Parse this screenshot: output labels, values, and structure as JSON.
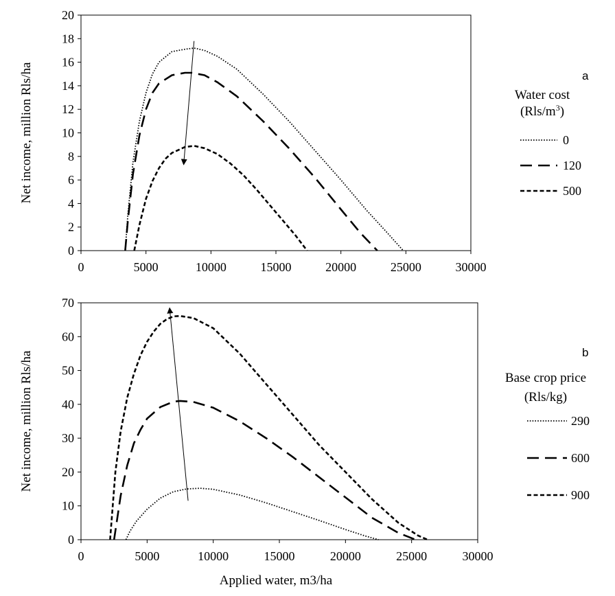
{
  "chart_data": [
    {
      "type": "line",
      "panel_label": "a",
      "title": "",
      "xlabel": "",
      "ylabel": "Net income, million Rls/ha",
      "xlim": [
        0,
        30000
      ],
      "ylim": [
        0,
        20
      ],
      "x_ticks": [
        0,
        5000,
        10000,
        15000,
        20000,
        25000,
        30000
      ],
      "y_ticks": [
        0,
        2,
        4,
        6,
        8,
        10,
        12,
        14,
        16,
        18,
        20
      ],
      "grid": false,
      "legend": {
        "title_line1": "Water cost",
        "title_line2_prefix": "(Rls/m",
        "title_line2_sup": "3",
        "title_line2_suffix": ")",
        "placement": "right"
      },
      "arrow": {
        "from": [
          8700,
          17.8
        ],
        "to": [
          7900,
          7.3
        ]
      },
      "series": [
        {
          "name": "0",
          "style": "dotted",
          "x": [
            3400,
            3600,
            4000,
            4500,
            5000,
            5500,
            6000,
            7000,
            8000,
            8700,
            9500,
            10500,
            12000,
            14000,
            16000,
            18000,
            20000,
            22000,
            23500,
            24800
          ],
          "y": [
            0,
            3.0,
            7.5,
            11.0,
            13.4,
            15.0,
            16.0,
            16.9,
            17.1,
            17.2,
            17.0,
            16.5,
            15.4,
            13.3,
            11.0,
            8.5,
            6.0,
            3.4,
            1.6,
            0
          ]
        },
        {
          "name": "120",
          "style": "long-dash",
          "x": [
            3400,
            3600,
            4000,
            4500,
            5000,
            5500,
            6000,
            7000,
            8000,
            8500,
            9500,
            10500,
            12000,
            14000,
            16000,
            18000,
            20000,
            21500,
            22800
          ],
          "y": [
            0,
            2.5,
            6.5,
            9.8,
            12.0,
            13.4,
            14.2,
            14.9,
            15.1,
            15.1,
            14.9,
            14.3,
            13.1,
            11.0,
            8.7,
            6.2,
            3.5,
            1.5,
            0
          ]
        },
        {
          "name": "500",
          "style": "short-dash",
          "x": [
            4100,
            4500,
            5000,
            5500,
            6000,
            6500,
            7000,
            8000,
            8700,
            9500,
            10500,
            11500,
            12500,
            13500,
            14500,
            15500,
            16500,
            17400
          ],
          "y": [
            0,
            2.2,
            4.4,
            5.9,
            7.0,
            7.8,
            8.3,
            8.8,
            8.9,
            8.7,
            8.2,
            7.4,
            6.4,
            5.2,
            3.9,
            2.6,
            1.3,
            0
          ]
        }
      ]
    },
    {
      "type": "line",
      "panel_label": "b",
      "title": "",
      "xlabel": "Applied water, m3/ha",
      "ylabel": "Net income, million Rls/ha",
      "xlim": [
        0,
        30000
      ],
      "ylim": [
        0,
        70
      ],
      "x_ticks": [
        0,
        5000,
        10000,
        15000,
        20000,
        25000,
        30000
      ],
      "y_ticks": [
        0,
        10,
        20,
        30,
        40,
        50,
        60,
        70
      ],
      "grid": false,
      "legend": {
        "title_line1": "Base crop price",
        "title_line2": "(Rls/kg)",
        "placement": "right"
      },
      "arrow": {
        "from": [
          8100,
          11.5
        ],
        "to": [
          6700,
          68.5
        ]
      },
      "series": [
        {
          "name": "290",
          "style": "dotted",
          "x": [
            3400,
            3700,
            4200,
            5000,
            6000,
            7000,
            8000,
            9000,
            10000,
            12000,
            14000,
            16000,
            18000,
            20000,
            21500,
            22500
          ],
          "y": [
            0,
            2.5,
            5.5,
            9.0,
            12.3,
            14.2,
            15.0,
            15.2,
            14.9,
            13.2,
            10.9,
            8.3,
            5.7,
            3.0,
            1.1,
            0
          ]
        },
        {
          "name": "600",
          "style": "long-dash",
          "x": [
            2500,
            3000,
            3500,
            4000,
            4500,
            5000,
            6000,
            7000,
            7500,
            8500,
            10000,
            12000,
            14000,
            16000,
            18000,
            20000,
            22000,
            24000,
            25300
          ],
          "y": [
            0,
            13.0,
            22.0,
            28.5,
            32.5,
            35.8,
            39.2,
            40.8,
            41.0,
            40.7,
            39.0,
            35.0,
            30.0,
            24.5,
            18.5,
            12.5,
            6.5,
            2.0,
            0
          ]
        },
        {
          "name": "900",
          "style": "short-dash",
          "x": [
            2200,
            2600,
            3000,
            3500,
            4000,
            4500,
            5000,
            5500,
            6000,
            6500,
            7000,
            7500,
            8500,
            10000,
            12000,
            14000,
            16000,
            18000,
            20000,
            22000,
            24000,
            25500,
            26200
          ],
          "y": [
            0,
            20.0,
            32.0,
            42.0,
            49.0,
            54.5,
            58.5,
            61.5,
            63.8,
            65.2,
            66.0,
            66.1,
            65.5,
            62.5,
            55.0,
            46.0,
            37.0,
            28.0,
            20.0,
            12.0,
            5.0,
            1.2,
            0
          ]
        }
      ]
    }
  ]
}
